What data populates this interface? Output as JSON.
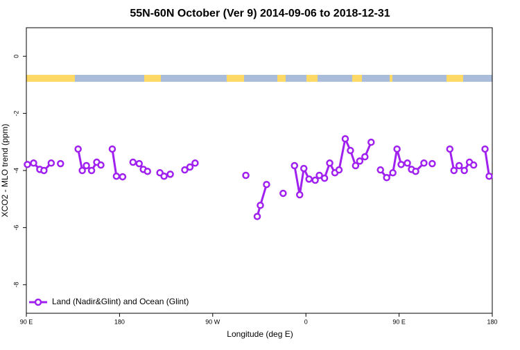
{
  "chart_data": {
    "type": "line",
    "title": "55N-60N October (Ver 9)   2014-09-06 to 2018-12-31",
    "x_label": "Longitude (deg E)",
    "y_label": "XCO2 - MLO trend (ppm)",
    "xlim": [
      90,
      540
    ],
    "ylim": [
      -9,
      1
    ],
    "xticks": [
      {
        "value": 90,
        "label": "90 E"
      },
      180,
      {
        "value": 270,
        "label": "90 W"
      },
      {
        "value": 360,
        "label": "0"
      },
      {
        "value": 450,
        "label": "90 E"
      },
      {
        "value": 540,
        "label": "180"
      }
    ],
    "yticks": [
      0,
      -2,
      -4,
      -6,
      -8
    ],
    "legend": "bottom-left",
    "series": [
      {
        "name": "Land (Nadir&Glint) and Ocean (Glint)",
        "color": "#a020f0",
        "x": [
          91,
          97,
          103,
          107,
          114,
          null,
          123,
          null,
          140,
          144,
          148,
          153,
          158,
          162,
          null,
          173,
          177,
          183,
          null,
          193,
          199,
          203,
          207,
          null,
          219,
          223,
          229,
          null,
          243,
          248,
          253,
          null,
          302,
          null,
          313,
          316,
          322,
          null,
          338,
          null,
          349,
          354,
          358,
          363,
          369,
          373,
          378,
          383,
          388,
          392,
          398,
          403,
          408,
          412,
          417,
          423,
          null,
          432,
          438,
          444,
          448,
          452,
          458,
          462,
          466,
          474,
          null,
          482,
          null,
          499,
          503,
          508,
          513,
          518,
          522,
          null,
          533,
          537
        ],
        "values": [
          -3.79,
          -3.74,
          -3.96,
          -4.0,
          -3.74,
          null,
          -3.76,
          null,
          -3.25,
          -4.0,
          -3.83,
          -4.0,
          -3.71,
          -3.81,
          null,
          -3.25,
          -4.2,
          -4.22,
          null,
          -3.71,
          -3.76,
          -3.96,
          -4.03,
          null,
          -4.08,
          -4.2,
          -4.13,
          null,
          -3.98,
          -3.88,
          -3.74,
          null,
          -4.17,
          null,
          -5.61,
          -5.22,
          -4.49,
          null,
          -4.8,
          null,
          -3.83,
          -4.85,
          -3.93,
          -4.3,
          -4.34,
          -4.17,
          -4.27,
          -3.74,
          -4.08,
          -3.98,
          -2.89,
          -3.3,
          -3.83,
          -3.67,
          -3.52,
          -3.01,
          null,
          -3.98,
          -4.25,
          -4.08,
          -3.25,
          -3.79,
          -3.74,
          -3.96,
          -4.03,
          -3.74,
          null,
          -3.76,
          null,
          -3.25,
          -4.0,
          -3.83,
          -4.0,
          -3.71,
          -3.81,
          null,
          -3.25,
          -4.2
        ]
      }
    ]
  }
}
